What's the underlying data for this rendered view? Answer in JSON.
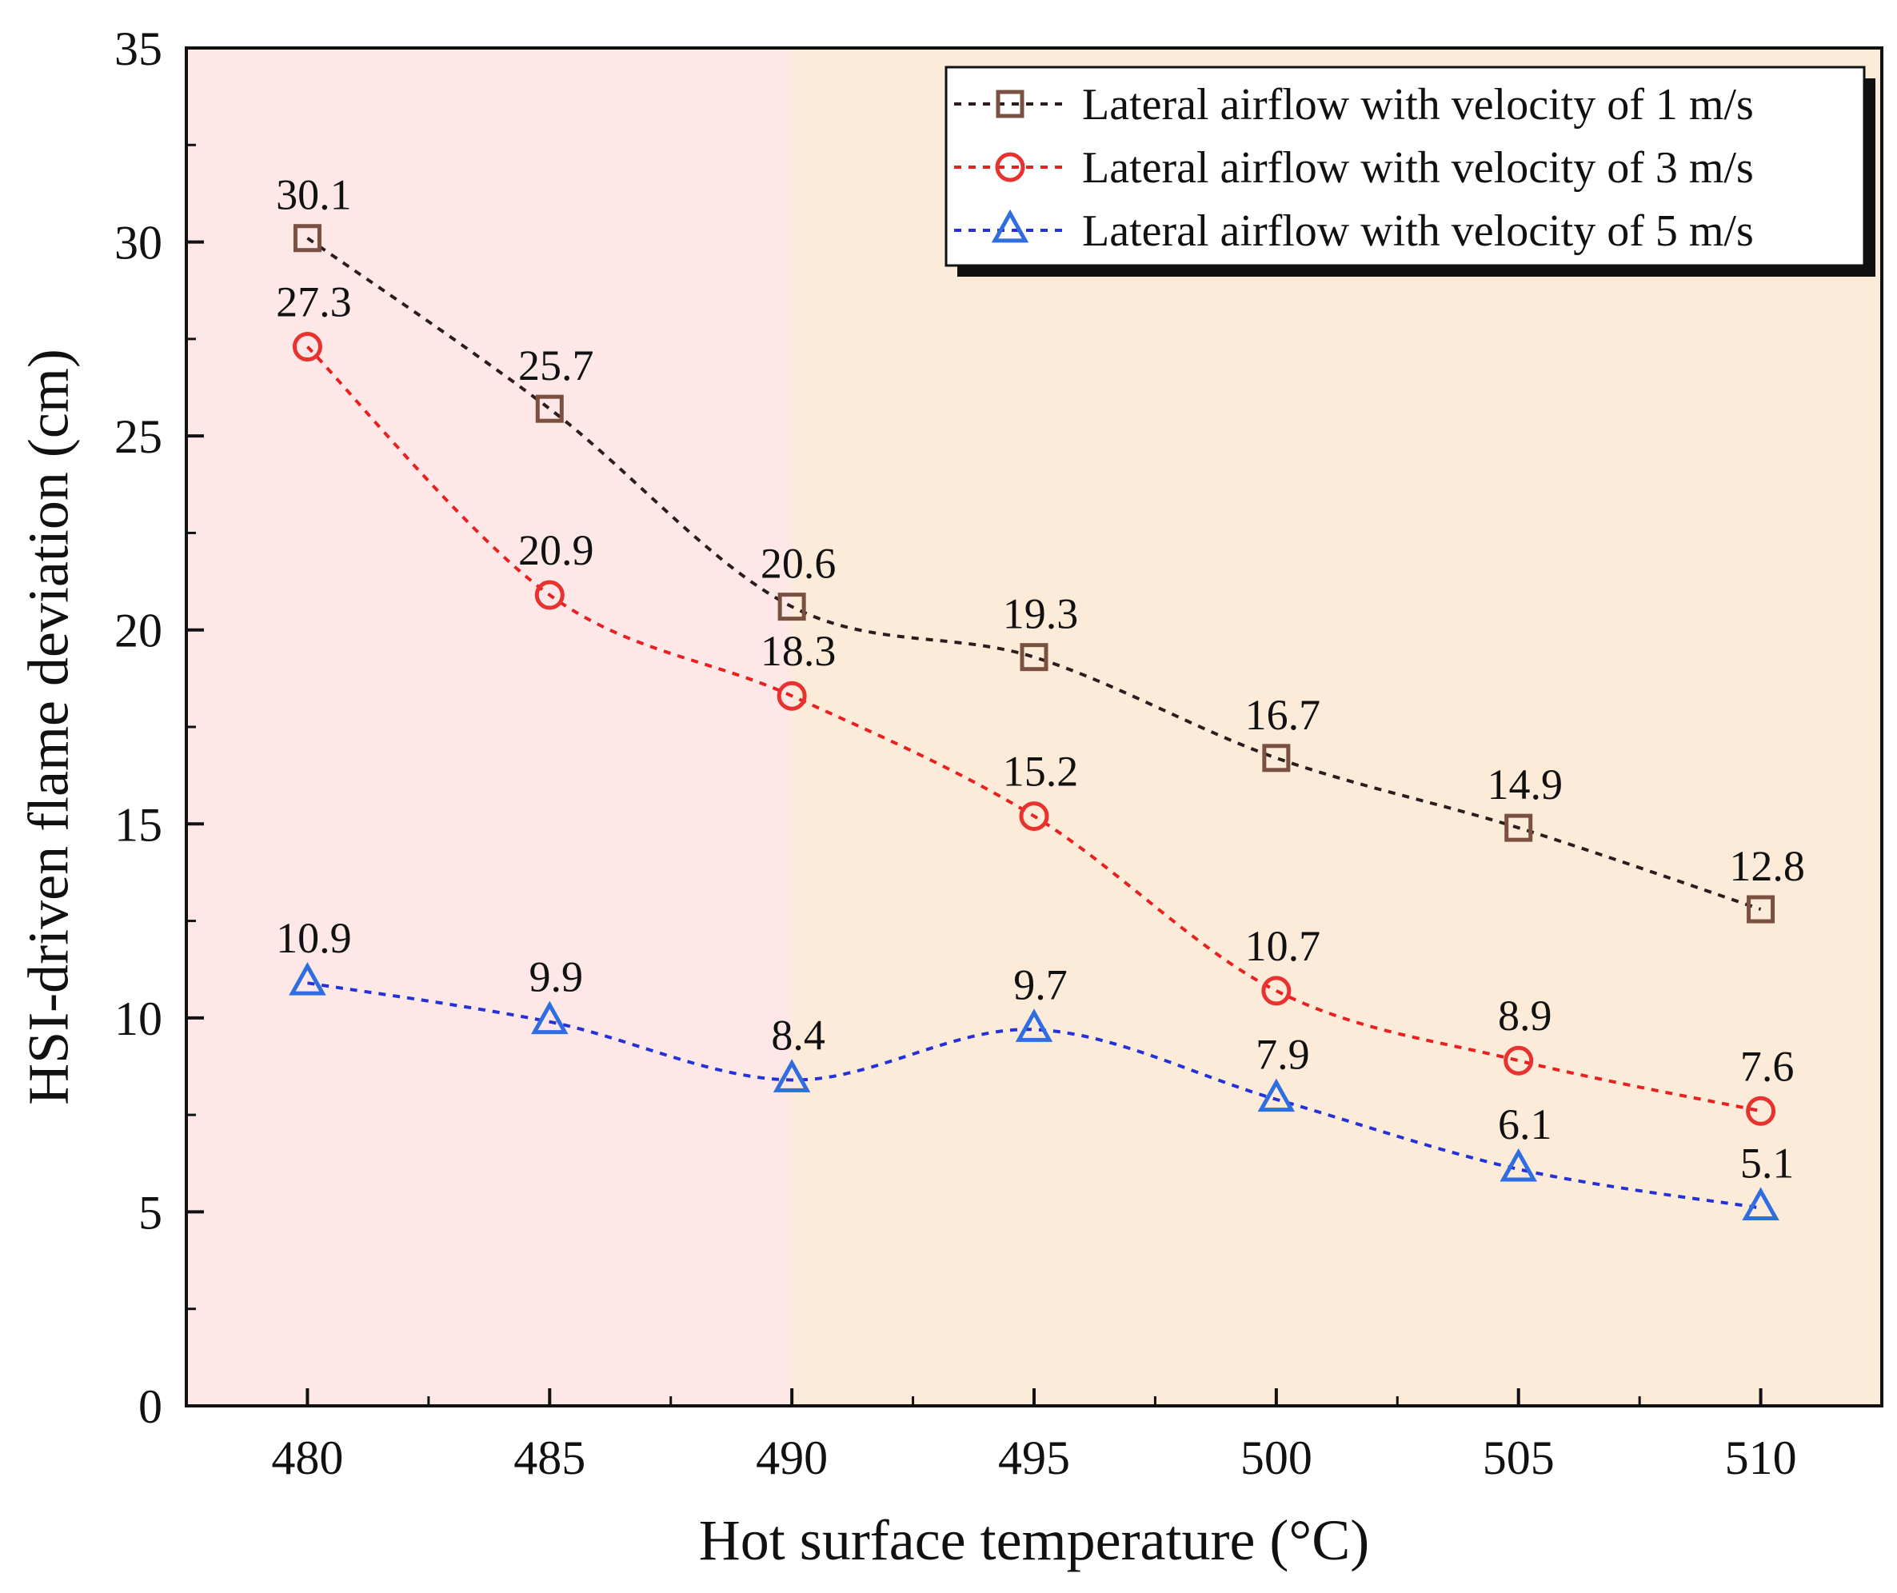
{
  "chart_data": {
    "type": "line",
    "title": "",
    "xlabel": "Hot surface temperature (°C)",
    "ylabel": "HSI-driven flame deviation (cm)",
    "x": [
      480,
      485,
      490,
      495,
      500,
      505,
      510
    ],
    "x_tick_labels": [
      "480",
      "485",
      "490",
      "495",
      "500",
      "505",
      "510"
    ],
    "y_tick_labels": [
      "0",
      "5",
      "10",
      "15",
      "20",
      "25",
      "30",
      "35"
    ],
    "xlim": [
      477.5,
      512.5
    ],
    "ylim": [
      0,
      35
    ],
    "grid": false,
    "legend_position": "top-right",
    "background_regions": [
      {
        "x_from": 477.5,
        "x_to": 490,
        "color": "#fde7e7"
      },
      {
        "x_from": 490,
        "x_to": 512.5,
        "color": "#fdebd9"
      }
    ],
    "series": [
      {
        "name": "Lateral airflow with velocity of 1 m/s",
        "marker": "square",
        "line_color": "#2b1d1d",
        "marker_color": "#7a5040",
        "values": [
          30.1,
          25.7,
          20.6,
          19.3,
          16.7,
          14.9,
          12.8
        ],
        "labels": [
          "30.1",
          "25.7",
          "20.6",
          "19.3",
          "16.7",
          "14.9",
          "12.8"
        ]
      },
      {
        "name": "Lateral airflow with velocity of 3 m/s",
        "marker": "circle",
        "line_color": "#e8201f",
        "marker_color": "#e8322f",
        "values": [
          27.3,
          20.9,
          18.3,
          15.2,
          10.7,
          8.9,
          7.6
        ],
        "labels": [
          "27.3",
          "20.9",
          "18.3",
          "15.2",
          "10.7",
          "8.9",
          "7.6"
        ]
      },
      {
        "name": "Lateral airflow with velocity of 5 m/s",
        "marker": "triangle",
        "line_color": "#2430d8",
        "marker_color": "#2e6ee0",
        "values": [
          10.9,
          9.9,
          8.4,
          9.7,
          7.9,
          6.1,
          5.1
        ],
        "labels": [
          "10.9",
          "9.9",
          "8.4",
          "9.7",
          "7.9",
          "6.1",
          "5.1"
        ]
      }
    ]
  }
}
